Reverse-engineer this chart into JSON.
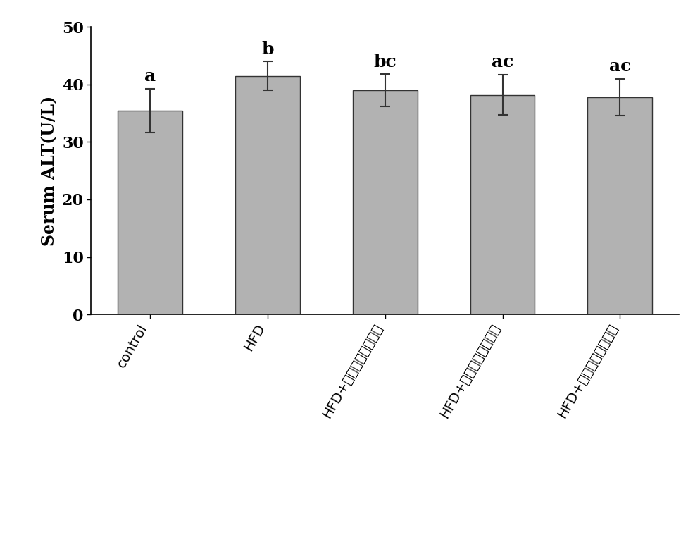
{
  "categories": [
    "control",
    "HFD",
    "HFD+裕贝甲素低剂量组",
    "HFD+裕贝甲素中剂量组",
    "HFD+裕贝甲素高剂量组"
  ],
  "values": [
    35.5,
    41.5,
    39.0,
    38.2,
    37.8
  ],
  "errors": [
    3.8,
    2.5,
    2.8,
    3.5,
    3.2
  ],
  "labels": [
    "a",
    "b",
    "bc",
    "ac",
    "ac"
  ],
  "bar_color": "#b2b2b2",
  "bar_edgecolor": "#333333",
  "ylabel": "Serum ALT(U/L)",
  "ylim": [
    0,
    50
  ],
  "yticks": [
    0,
    10,
    20,
    30,
    40,
    50
  ],
  "label_fontsize": 17,
  "tick_fontsize": 16,
  "annotation_fontsize": 18,
  "xtick_fontsize": 14,
  "bar_width": 0.55,
  "figsize": [
    9.94,
    7.69
  ],
  "dpi": 100,
  "rotation": 60
}
